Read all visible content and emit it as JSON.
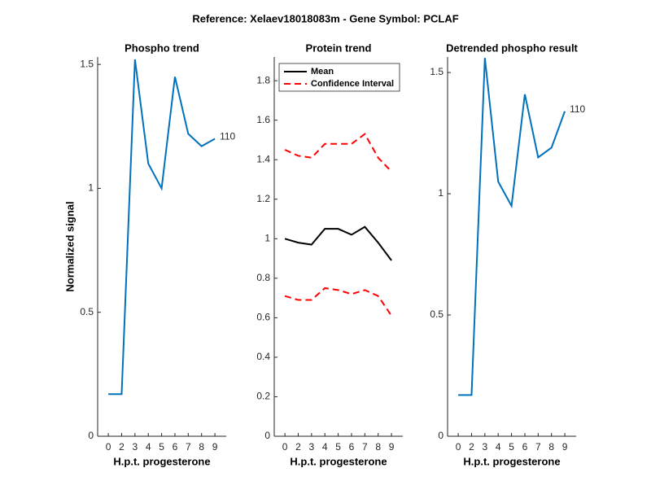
{
  "title": "Reference:  Xelaev18018083m - Gene Symbol:  PCLAF",
  "chart_data": [
    {
      "type": "line",
      "title": "Phospho trend",
      "xlabel": "H.p.t. progesterone",
      "ylabel": "Normalized signal",
      "categories": [
        "0",
        "2",
        "3",
        "4",
        "5",
        "6",
        "7",
        "8",
        "9"
      ],
      "series": [
        {
          "color": "#0072bd",
          "values": [
            0.17,
            0.17,
            1.52,
            1.1,
            1.0,
            1.45,
            1.22,
            1.17,
            1.2
          ]
        }
      ],
      "annotation": "110",
      "ylim": [
        0,
        1.53
      ],
      "yticks": [
        0,
        0.5,
        1,
        1.5
      ]
    },
    {
      "type": "band-line",
      "title": "Protein trend",
      "xlabel": "H.p.t. progesterone",
      "categories": [
        "0",
        "2",
        "3",
        "4",
        "5",
        "6",
        "7",
        "8",
        "9"
      ],
      "series": [
        {
          "name": "Mean",
          "color": "#000000",
          "values": [
            1.0,
            0.98,
            0.97,
            1.05,
            1.05,
            1.02,
            1.06,
            0.98,
            0.89
          ]
        },
        {
          "name": "Confidence Interval",
          "color": "#ff0000",
          "dashed": true,
          "upper": [
            1.45,
            1.42,
            1.41,
            1.48,
            1.48,
            1.48,
            1.53,
            1.41,
            1.34
          ],
          "lower": [
            0.71,
            0.69,
            0.69,
            0.75,
            0.74,
            0.72,
            0.74,
            0.71,
            0.61
          ]
        }
      ],
      "legend": "upper left",
      "ylim": [
        0,
        1.92
      ],
      "yticks": [
        0,
        0.2,
        0.4,
        0.6,
        0.8,
        1,
        1.2,
        1.4,
        1.6,
        1.8
      ]
    },
    {
      "type": "line",
      "title": "Detrended phospho result",
      "xlabel": "H.p.t. progesterone",
      "categories": [
        "0",
        "2",
        "3",
        "4",
        "5",
        "6",
        "7",
        "8",
        "9"
      ],
      "series": [
        {
          "color": "#0072bd",
          "values": [
            0.17,
            0.17,
            1.56,
            1.05,
            0.95,
            1.41,
            1.15,
            1.19,
            1.34
          ]
        }
      ],
      "annotation": "110",
      "ylim": [
        0,
        1.564
      ],
      "yticks": [
        0,
        0.5,
        1,
        1.5
      ]
    }
  ]
}
